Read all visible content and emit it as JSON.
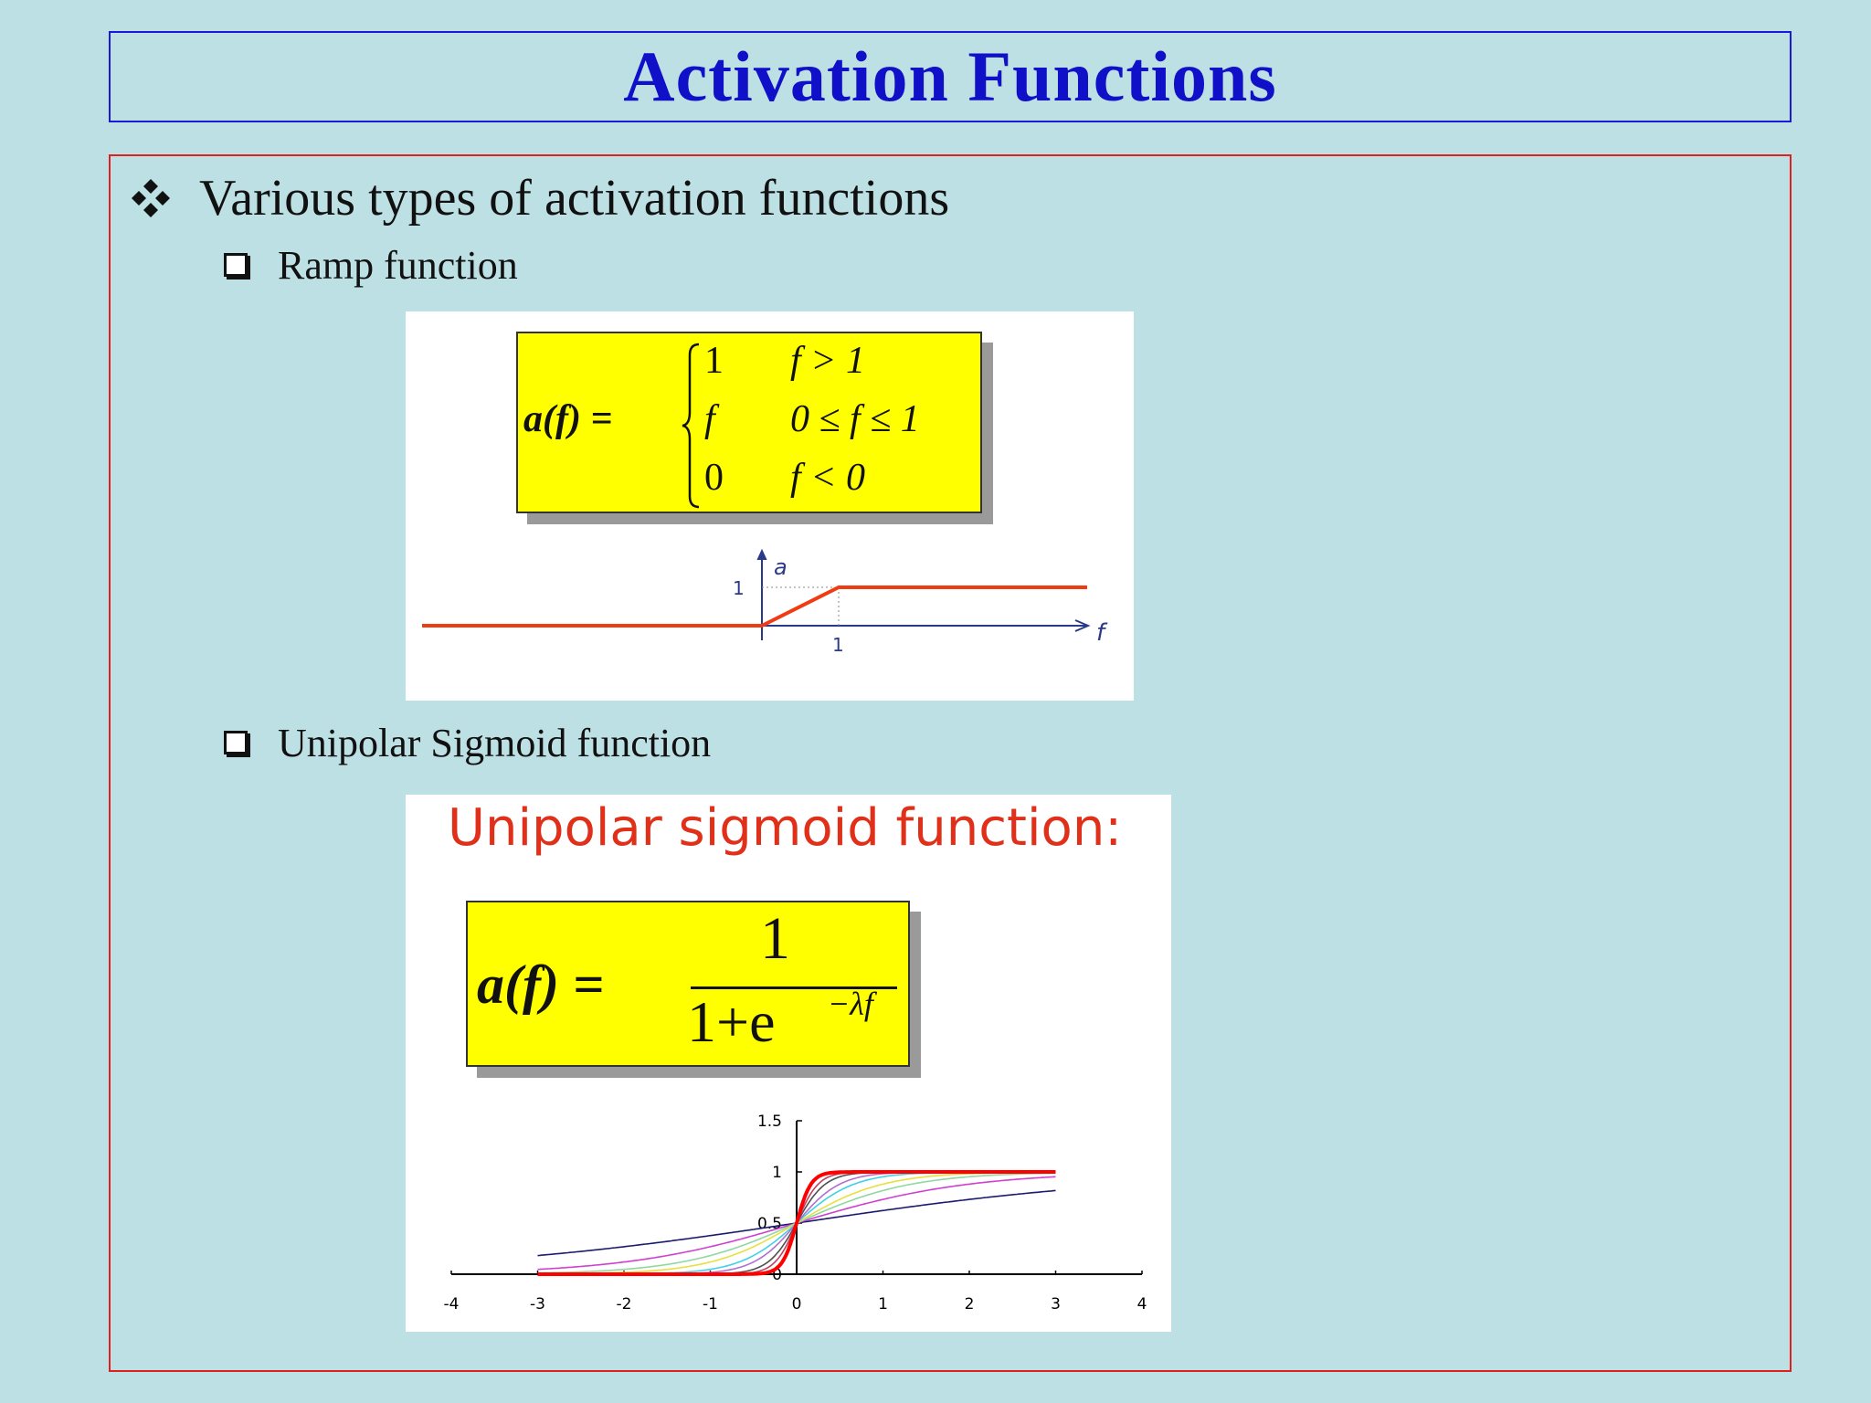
{
  "title": "Activation Functions",
  "bullets": {
    "main": "Various types of activation functions",
    "ramp_label": "Ramp function",
    "sigmoid_label": "Unipolar Sigmoid function"
  },
  "ramp": {
    "lhs": "a(f) =",
    "cases": [
      {
        "value": "1",
        "condition": "f > 1"
      },
      {
        "value": "f",
        "condition": "0 ≤ f ≤ 1"
      },
      {
        "value": "0",
        "condition": "f < 0"
      }
    ],
    "plot": {
      "y_axis_label": "a",
      "x_axis_label": "f",
      "y_tick": "1",
      "x_tick": "1",
      "line_color": "#f03c14"
    }
  },
  "sigmoid": {
    "heading": "Unipolar sigmoid function:",
    "lhs": "a(f) =",
    "numerator": "1",
    "denominator_base": "1+e",
    "exponent": "−λf",
    "heading_color": "#e0301a"
  },
  "chart_data": {
    "type": "line",
    "title": "",
    "xlabel": "",
    "ylabel": "",
    "xlim": [
      -4,
      4
    ],
    "ylim": [
      0,
      1.5
    ],
    "x_ticks": [
      "-4",
      "-3",
      "-2",
      "-1",
      "0",
      "1",
      "2",
      "3",
      "4"
    ],
    "y_ticks": [
      "0",
      "0.5",
      "1",
      "1.5"
    ],
    "x_range_of_curves": [
      -3,
      3
    ],
    "series": [
      {
        "lambda": 0.5,
        "color": "#1a1a6e"
      },
      {
        "lambda": 1,
        "color": "#d040d0"
      },
      {
        "lambda": 1.5,
        "color": "#8fd8a0"
      },
      {
        "lambda": 2,
        "color": "#e8e040"
      },
      {
        "lambda": 3,
        "color": "#40d0e8"
      },
      {
        "lambda": 4,
        "color": "#b070d0"
      },
      {
        "lambda": 6,
        "color": "#505050"
      },
      {
        "lambda": 8,
        "color": "#c04060"
      },
      {
        "lambda": 12,
        "color": "#ff0000",
        "thick": true
      }
    ]
  }
}
